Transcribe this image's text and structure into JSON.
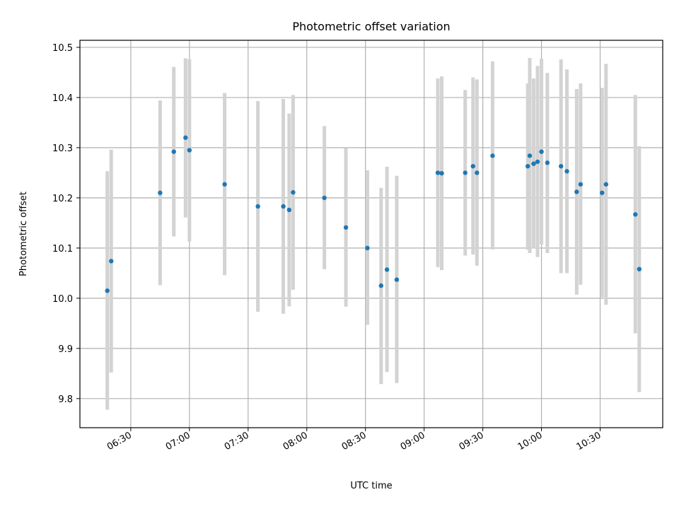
{
  "chart_data": {
    "type": "scatter",
    "title": "Photometric offset variation",
    "xlabel": "UTC time",
    "ylabel": "Photometric offset",
    "x_ticks": [
      "06:30",
      "07:00",
      "07:30",
      "08:00",
      "08:30",
      "09:00",
      "09:30",
      "10:00",
      "10:30"
    ],
    "y_ticks": [
      "9.8",
      "9.9",
      "10.0",
      "10.1",
      "10.2",
      "10.3",
      "10.4",
      "10.5"
    ],
    "xlim": [
      "06:04",
      "11:02"
    ],
    "ylim": [
      9.742,
      10.514
    ],
    "grid": true,
    "colors": {
      "points": "#1f77b4",
      "errorbars": "#d3d3d3",
      "grid": "#b0b0b0"
    },
    "points": [
      {
        "x": "06:18",
        "y": 10.015,
        "lo": 9.778,
        "hi": 10.253
      },
      {
        "x": "06:20",
        "y": 10.074,
        "lo": 9.852,
        "hi": 10.296
      },
      {
        "x": "06:45",
        "y": 10.21,
        "lo": 10.026,
        "hi": 10.394
      },
      {
        "x": "06:52",
        "y": 10.292,
        "lo": 10.123,
        "hi": 10.461
      },
      {
        "x": "06:58",
        "y": 10.32,
        "lo": 10.161,
        "hi": 10.478
      },
      {
        "x": "07:00",
        "y": 10.295,
        "lo": 10.113,
        "hi": 10.476
      },
      {
        "x": "07:18",
        "y": 10.227,
        "lo": 10.046,
        "hi": 10.409
      },
      {
        "x": "07:35",
        "y": 10.183,
        "lo": 9.973,
        "hi": 10.393
      },
      {
        "x": "07:48",
        "y": 10.183,
        "lo": 9.969,
        "hi": 10.397
      },
      {
        "x": "07:51",
        "y": 10.176,
        "lo": 9.984,
        "hi": 10.368
      },
      {
        "x": "07:53",
        "y": 10.211,
        "lo": 10.017,
        "hi": 10.405
      },
      {
        "x": "08:09",
        "y": 10.2,
        "lo": 10.058,
        "hi": 10.343
      },
      {
        "x": "08:20",
        "y": 10.141,
        "lo": 9.983,
        "hi": 10.299
      },
      {
        "x": "08:31",
        "y": 10.1,
        "lo": 9.947,
        "hi": 10.255
      },
      {
        "x": "08:38",
        "y": 10.025,
        "lo": 9.829,
        "hi": 10.22
      },
      {
        "x": "08:41",
        "y": 10.057,
        "lo": 9.853,
        "hi": 10.262
      },
      {
        "x": "08:46",
        "y": 10.037,
        "lo": 9.831,
        "hi": 10.244
      },
      {
        "x": "09:07",
        "y": 10.25,
        "lo": 10.062,
        "hi": 10.438
      },
      {
        "x": "09:09",
        "y": 10.249,
        "lo": 10.056,
        "hi": 10.442
      },
      {
        "x": "09:21",
        "y": 10.25,
        "lo": 10.085,
        "hi": 10.415
      },
      {
        "x": "09:25",
        "y": 10.263,
        "lo": 10.087,
        "hi": 10.44
      },
      {
        "x": "09:27",
        "y": 10.25,
        "lo": 10.065,
        "hi": 10.436
      },
      {
        "x": "09:35",
        "y": 10.284,
        "lo": 10.097,
        "hi": 10.472
      },
      {
        "x": "09:53",
        "y": 10.263,
        "lo": 10.097,
        "hi": 10.428
      },
      {
        "x": "09:54",
        "y": 10.284,
        "lo": 10.09,
        "hi": 10.479
      },
      {
        "x": "09:56",
        "y": 10.268,
        "lo": 10.099,
        "hi": 10.438
      },
      {
        "x": "09:58",
        "y": 10.272,
        "lo": 10.082,
        "hi": 10.463
      },
      {
        "x": "10:00",
        "y": 10.292,
        "lo": 10.107,
        "hi": 10.477
      },
      {
        "x": "10:03",
        "y": 10.27,
        "lo": 10.09,
        "hi": 10.449
      },
      {
        "x": "10:10",
        "y": 10.263,
        "lo": 10.05,
        "hi": 10.476
      },
      {
        "x": "10:13",
        "y": 10.253,
        "lo": 10.05,
        "hi": 10.456
      },
      {
        "x": "10:18",
        "y": 10.212,
        "lo": 10.007,
        "hi": 10.417
      },
      {
        "x": "10:20",
        "y": 10.227,
        "lo": 10.027,
        "hi": 10.428
      },
      {
        "x": "10:31",
        "y": 10.21,
        "lo": 10.002,
        "hi": 10.419
      },
      {
        "x": "10:33",
        "y": 10.227,
        "lo": 9.987,
        "hi": 10.467
      },
      {
        "x": "10:48",
        "y": 10.167,
        "lo": 9.93,
        "hi": 10.405
      },
      {
        "x": "10:50",
        "y": 10.058,
        "lo": 9.813,
        "hi": 10.303
      }
    ]
  }
}
